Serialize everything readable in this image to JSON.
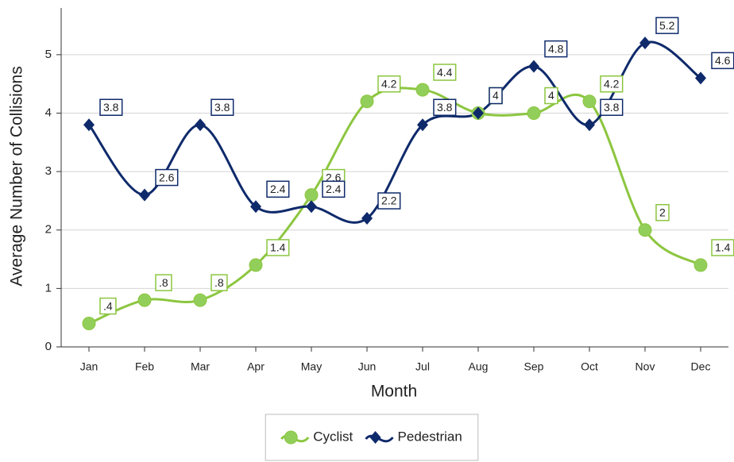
{
  "chart_data": {
    "type": "line",
    "x_label": "Month",
    "y_label": "Average Number of Collisions",
    "categories": [
      "Jan",
      "Feb",
      "Mar",
      "Apr",
      "May",
      "Jun",
      "Jul",
      "Aug",
      "Sep",
      "Oct",
      "Nov",
      "Dec"
    ],
    "series": [
      {
        "name": "Cyclist",
        "color": "#8cc63f",
        "values": [
          0.4,
          0.8,
          0.8,
          1.4,
          2.6,
          4.2,
          4.4,
          4,
          4,
          4.2,
          2,
          1.4
        ],
        "value_labels": [
          ".4",
          ".8",
          ".8",
          "1.4",
          "2.6",
          "4.2",
          "4.4",
          "4",
          "4",
          "4.2",
          "2",
          "1.4"
        ]
      },
      {
        "name": "Pedestrian",
        "color": "#0f2a6b",
        "values": [
          3.8,
          2.6,
          3.8,
          2.4,
          2.4,
          2.2,
          3.8,
          4,
          4.8,
          3.8,
          5.2,
          4.6
        ]
      }
    ],
    "ylim": [
      0,
      5.8
    ],
    "yticks": [
      0,
      1,
      2,
      3,
      4,
      5
    ],
    "grid": true,
    "legend": "bottom"
  }
}
